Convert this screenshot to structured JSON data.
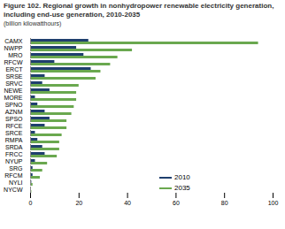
{
  "chart_data": {
    "type": "bar",
    "orientation": "horizontal",
    "title": "Figure 102. Regional growth in nonhydropower renewable electricity generation, including end-use generation, 2010-2035",
    "subtitle": "(billion kilowatthours)",
    "categories": [
      "CAMX",
      "NWPP",
      "MRO",
      "RFCW",
      "ERCT",
      "SRSE",
      "SRVC",
      "NEWE",
      "MORE",
      "SPNO",
      "AZNM",
      "SPSO",
      "RFCE",
      "SRCE",
      "RMPA",
      "SRDA",
      "FRCC",
      "NYUP",
      "SRG",
      "RFCM",
      "NYLI",
      "NYCW"
    ],
    "series": [
      {
        "name": "2010",
        "color": "#1f3f6e",
        "values": [
          24,
          19,
          22,
          10,
          25,
          6,
          5,
          8,
          2,
          3,
          6,
          8,
          6,
          2,
          3,
          5,
          6,
          2,
          1,
          1,
          0.5,
          0
        ]
      },
      {
        "name": "2035",
        "color": "#6aa84f",
        "values": [
          94,
          42,
          36,
          33,
          29,
          27,
          20,
          19,
          19,
          18,
          17,
          15,
          15,
          13,
          12,
          12,
          11,
          7,
          5,
          4,
          1,
          0.5
        ]
      }
    ],
    "xlim": [
      0,
      100
    ],
    "xticks": [
      0,
      20,
      40,
      60,
      80,
      100
    ],
    "grid": false,
    "legend": "bottom-right"
  }
}
